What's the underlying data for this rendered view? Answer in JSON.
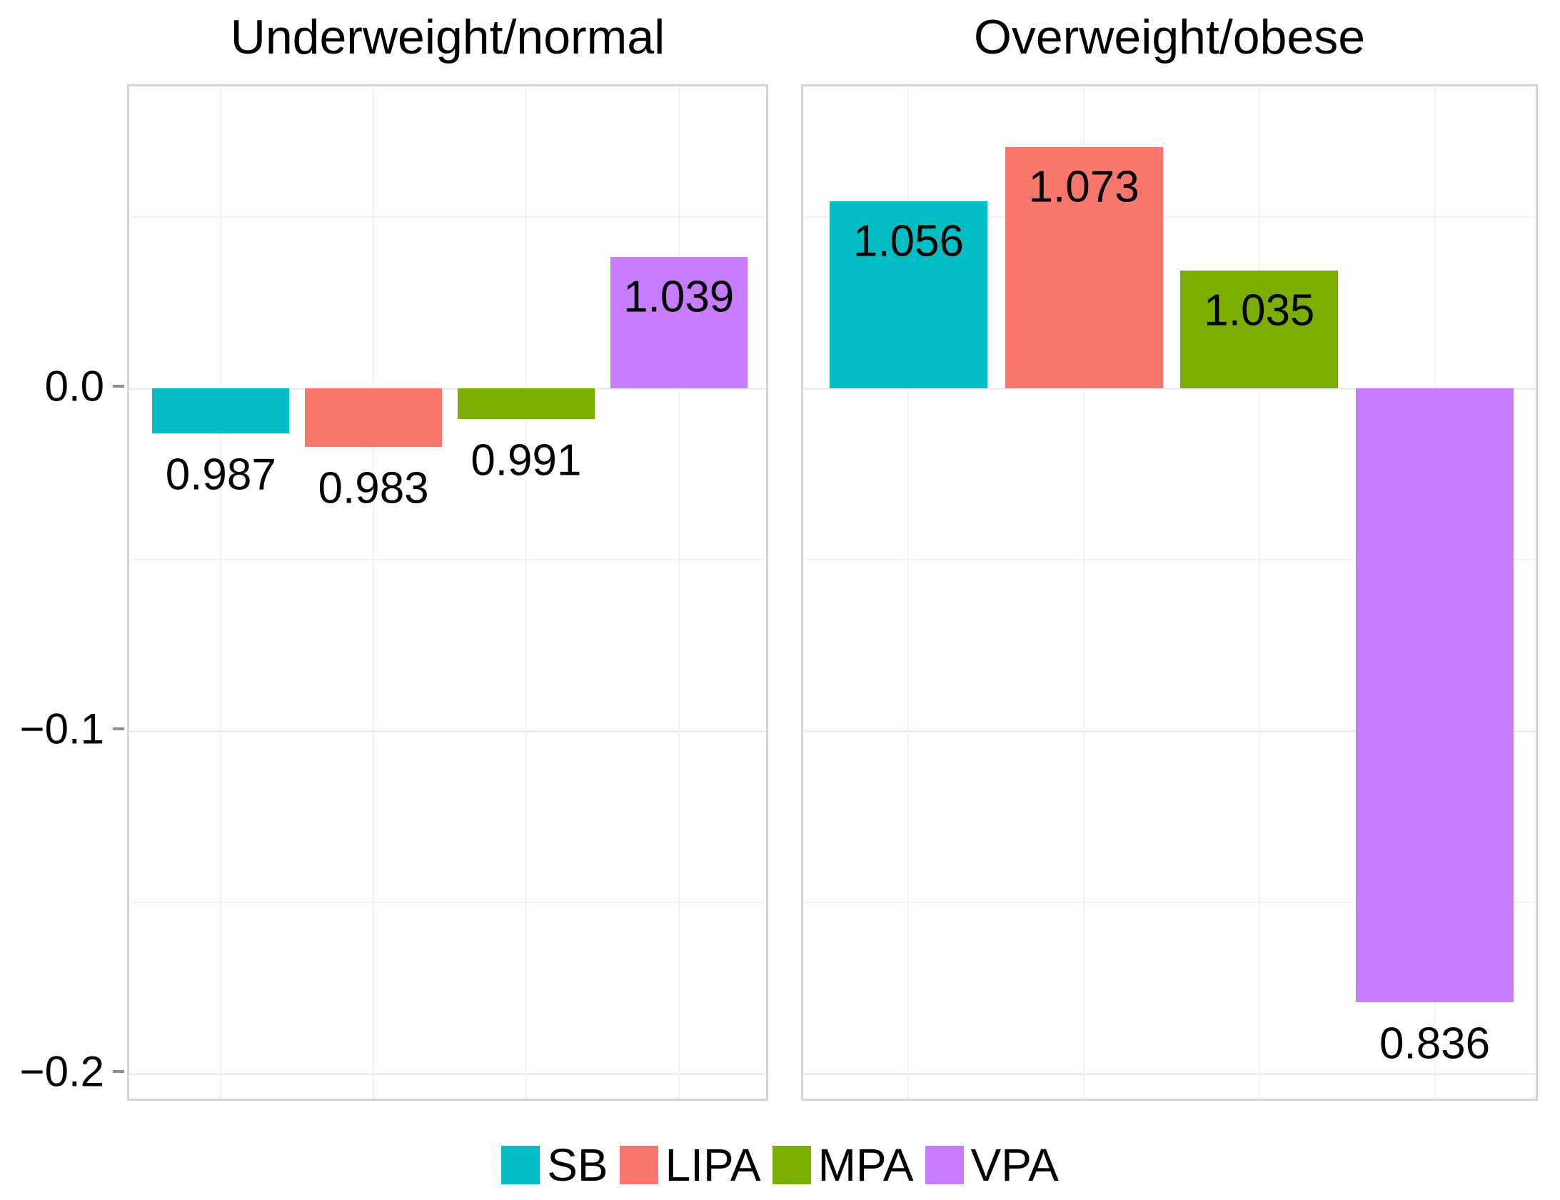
{
  "chart_data": {
    "type": "bar",
    "description": "Faceted bar chart; bar height drawn as ln(value) relative to zero line, value printed at bar end",
    "facets": [
      {
        "title": "Underweight/normal",
        "categories": [
          "SB",
          "LIPA",
          "MPA",
          "VPA"
        ],
        "values": [
          0.987,
          0.983,
          0.991,
          1.039
        ],
        "bar_labels": [
          "0.987",
          "0.983",
          "0.991",
          "1.039"
        ]
      },
      {
        "title": "Overweight/obese",
        "categories": [
          "SB",
          "LIPA",
          "MPA",
          "VPA"
        ],
        "values": [
          1.056,
          1.073,
          1.035,
          0.836
        ],
        "bar_labels": [
          "1.056",
          "1.073",
          "1.035",
          "0.836"
        ]
      }
    ],
    "bar_height_transform": "ln(value)",
    "y_axis": {
      "tick_labels": [
        "0.0",
        "−0.1",
        "−0.2"
      ],
      "tick_values": [
        0,
        -0.1,
        -0.2
      ],
      "minor_tick_values": [
        0.05,
        -0.05,
        -0.15
      ],
      "ylim": [
        -0.212,
        0.088
      ]
    },
    "legend": {
      "position": "bottom",
      "entries": [
        {
          "label": "SB",
          "color": "#00BEC4"
        },
        {
          "label": "LIPA",
          "color": "#F8766D"
        },
        {
          "label": "MPA",
          "color": "#7CAE00"
        },
        {
          "label": "VPA",
          "color": "#C77CFF"
        }
      ]
    },
    "grid": {
      "horizontal_major": true,
      "horizontal_minor": true,
      "vertical_major": true,
      "legend_position": "bottom"
    },
    "colors_by_category": {
      "SB": "#00BEC4",
      "LIPA": "#F8766D",
      "MPA": "#7CAE00",
      "VPA": "#C77CFF"
    }
  }
}
